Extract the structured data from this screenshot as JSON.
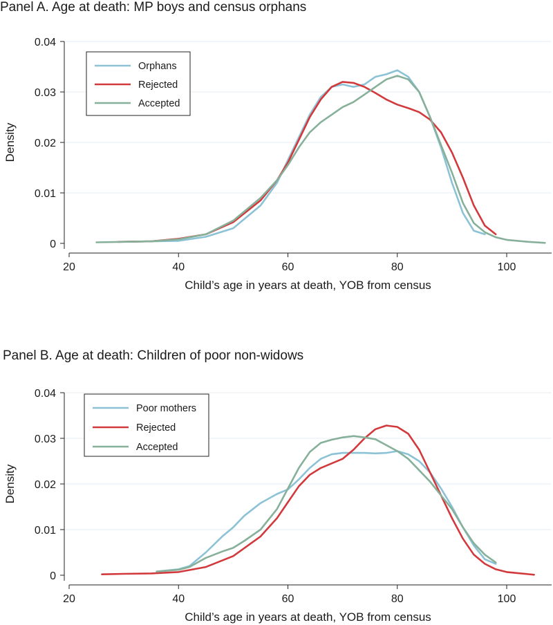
{
  "chart_data": [
    {
      "type": "line",
      "title": "Panel A. Age at death: MP boys and census orphans",
      "xlabel": "Child’s age in years at death, YOB from census",
      "ylabel": "Density",
      "xlim": [
        20,
        108
      ],
      "ylim": [
        -0.001,
        0.041
      ],
      "xticks": [
        20,
        40,
        60,
        80,
        100
      ],
      "yticks": [
        0,
        0.01,
        0.02,
        0.03,
        0.04
      ],
      "xtick_labels": [
        "20",
        "40",
        "60",
        "80",
        "100"
      ],
      "ytick_labels": [
        "0",
        "0.01",
        "0.02",
        "0.03",
        "0.04"
      ],
      "grid": true,
      "legend_position": "top-left",
      "series": [
        {
          "name": "Orphans",
          "color": "#8cc2d6",
          "x": [
            29,
            35,
            40,
            45,
            50,
            55,
            58,
            60,
            62,
            64,
            66,
            68,
            70,
            72,
            74,
            76,
            78,
            80,
            82,
            84,
            86,
            88,
            90,
            92,
            94,
            96
          ],
          "y": [
            0.0003,
            0.0004,
            0.0005,
            0.0013,
            0.003,
            0.0075,
            0.012,
            0.0165,
            0.021,
            0.0255,
            0.029,
            0.031,
            0.0315,
            0.031,
            0.0315,
            0.033,
            0.0335,
            0.0343,
            0.033,
            0.03,
            0.025,
            0.019,
            0.012,
            0.006,
            0.0025,
            0.0018
          ]
        },
        {
          "name": "Rejected",
          "color": "#d2393c",
          "x": [
            29,
            35,
            40,
            45,
            50,
            55,
            58,
            60,
            62,
            64,
            66,
            68,
            70,
            72,
            74,
            76,
            78,
            80,
            82,
            84,
            86,
            88,
            90,
            92,
            94,
            96,
            98
          ],
          "y": [
            0.0003,
            0.0004,
            0.0009,
            0.0018,
            0.0042,
            0.0085,
            0.0125,
            0.016,
            0.0205,
            0.025,
            0.0285,
            0.031,
            0.032,
            0.0318,
            0.031,
            0.0298,
            0.0285,
            0.0275,
            0.0268,
            0.026,
            0.0245,
            0.022,
            0.018,
            0.013,
            0.0075,
            0.0035,
            0.0018
          ]
        },
        {
          "name": "Accepted",
          "color": "#86b09a",
          "x": [
            25,
            30,
            35,
            40,
            45,
            50,
            55,
            58,
            60,
            62,
            64,
            66,
            68,
            70,
            72,
            74,
            76,
            78,
            80,
            82,
            84,
            86,
            88,
            90,
            92,
            94,
            96,
            98,
            100,
            104,
            107
          ],
          "y": [
            0.0002,
            0.0003,
            0.0004,
            0.0008,
            0.0018,
            0.0045,
            0.009,
            0.0125,
            0.0155,
            0.019,
            0.022,
            0.024,
            0.0255,
            0.027,
            0.028,
            0.0295,
            0.031,
            0.0325,
            0.0332,
            0.0325,
            0.03,
            0.025,
            0.0195,
            0.014,
            0.008,
            0.004,
            0.0022,
            0.0012,
            0.0007,
            0.0003,
            0.0001
          ]
        }
      ],
      "legend": {
        "items": [
          "Orphans",
          "Rejected",
          "Accepted"
        ]
      }
    },
    {
      "type": "line",
      "title": "Panel B. Age at death: Children of poor non-widows",
      "xlabel": "Child’s age in years at death, YOB from census",
      "ylabel": "Density",
      "xlim": [
        20,
        108
      ],
      "ylim": [
        -0.001,
        0.041
      ],
      "xticks": [
        20,
        40,
        60,
        80,
        100
      ],
      "yticks": [
        0,
        0.01,
        0.02,
        0.03,
        0.04
      ],
      "xtick_labels": [
        "20",
        "40",
        "60",
        "80",
        "100"
      ],
      "ytick_labels": [
        "0",
        "0.01",
        "0.02",
        "0.03",
        "0.04"
      ],
      "grid": true,
      "legend_position": "top-left",
      "series": [
        {
          "name": "Poor mothers",
          "color": "#8cc2d6",
          "x": [
            36,
            40,
            42,
            45,
            48,
            50,
            52,
            55,
            58,
            60,
            62,
            64,
            66,
            68,
            70,
            72,
            74,
            76,
            78,
            80,
            82,
            84,
            86,
            88,
            90,
            92,
            94,
            96,
            98
          ],
          "y": [
            0.0008,
            0.0013,
            0.002,
            0.005,
            0.0085,
            0.0105,
            0.013,
            0.0158,
            0.0178,
            0.0188,
            0.021,
            0.0235,
            0.0255,
            0.0265,
            0.0268,
            0.0268,
            0.0268,
            0.0267,
            0.0268,
            0.0272,
            0.0265,
            0.025,
            0.0225,
            0.019,
            0.015,
            0.0105,
            0.0065,
            0.0035,
            0.0025
          ]
        },
        {
          "name": "Rejected",
          "color": "#d2393c",
          "x": [
            26,
            30,
            35,
            40,
            45,
            50,
            55,
            58,
            60,
            62,
            64,
            66,
            68,
            70,
            72,
            74,
            76,
            78,
            80,
            82,
            84,
            86,
            88,
            90,
            92,
            94,
            96,
            98,
            100,
            105
          ],
          "y": [
            0.0002,
            0.0003,
            0.0004,
            0.0007,
            0.0018,
            0.0042,
            0.0085,
            0.0125,
            0.016,
            0.0195,
            0.022,
            0.0235,
            0.0245,
            0.0255,
            0.0275,
            0.03,
            0.032,
            0.0328,
            0.0325,
            0.031,
            0.0275,
            0.0225,
            0.0175,
            0.0125,
            0.008,
            0.0045,
            0.0025,
            0.0013,
            0.0007,
            0.0001
          ]
        },
        {
          "name": "Accepted",
          "color": "#86b09a",
          "x": [
            36,
            40,
            42,
            45,
            48,
            50,
            52,
            55,
            58,
            60,
            62,
            64,
            66,
            68,
            70,
            72,
            74,
            76,
            78,
            80,
            82,
            84,
            86,
            88,
            90,
            92,
            94,
            96,
            98
          ],
          "y": [
            0.0008,
            0.0012,
            0.0018,
            0.0038,
            0.0052,
            0.006,
            0.0075,
            0.01,
            0.0145,
            0.019,
            0.0235,
            0.027,
            0.029,
            0.0297,
            0.0302,
            0.0305,
            0.0302,
            0.0298,
            0.0285,
            0.0272,
            0.0255,
            0.023,
            0.0205,
            0.0175,
            0.0145,
            0.0105,
            0.007,
            0.0045,
            0.0028
          ]
        }
      ],
      "legend": {
        "items": [
          "Poor mothers",
          "Rejected",
          "Accepted"
        ]
      }
    }
  ]
}
